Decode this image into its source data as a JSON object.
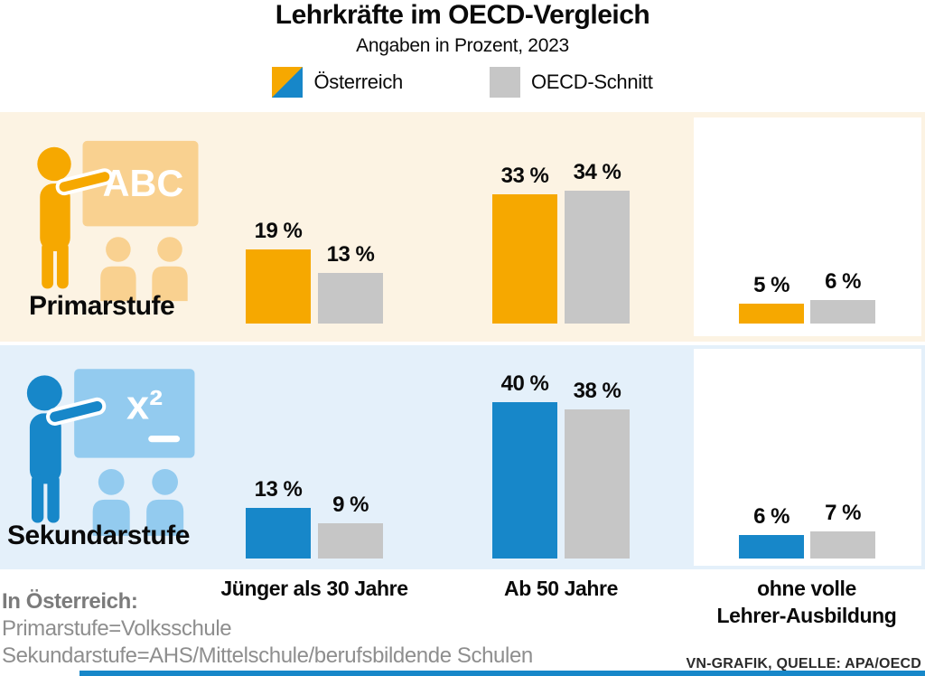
{
  "header": {
    "title": "Lehrkräfte im OECD-Vergleich",
    "subtitle": "Angaben in Prozent, 2023",
    "legend": [
      {
        "label": "Österreich",
        "swatch": "split-orange-blue"
      },
      {
        "label": "OECD-Schnitt",
        "swatch": "gray"
      }
    ]
  },
  "chart_data": {
    "type": "bar",
    "title": "Lehrkräfte im OECD-Vergleich",
    "subtitle": "Angaben in Prozent, 2023",
    "unit": "percent",
    "value_suffix": " %",
    "legend": [
      "Österreich",
      "OECD-Schnitt"
    ],
    "categories": [
      "Jünger als 30 Jahre",
      "Ab 50 Jahre",
      "ohne volle\nLehrer-Ausbildung"
    ],
    "rows": [
      {
        "label": "Primarstufe",
        "icon": "teacher-blackboard-abc",
        "icon_board_text": "ABC",
        "series": [
          {
            "name": "Österreich",
            "values": [
              19,
              33,
              5
            ]
          },
          {
            "name": "OECD-Schnitt",
            "values": [
              13,
              34,
              6
            ]
          }
        ]
      },
      {
        "label": "Sekundarstufe",
        "icon": "teacher-blackboard-x2",
        "icon_board_text": "x²",
        "series": [
          {
            "name": "Österreich",
            "values": [
              13,
              40,
              6
            ]
          },
          {
            "name": "OECD-Schnitt",
            "values": [
              9,
              38,
              7
            ]
          }
        ]
      }
    ]
  },
  "footnotes": {
    "heading": "In Österreich:",
    "lines": [
      "Primarstufe=Volksschule",
      "Sekundarstufe=AHS/Mittelschule/berufsbildende Schulen"
    ]
  },
  "source": "VN-GRAFIK, QUELLE: APA/OECD",
  "colors": {
    "austria_primary": "#F6A800",
    "austria_primary_light": "#F9D190",
    "primary_band_bg": "#FCF3E3",
    "austria_secondary": "#1787C9",
    "austria_secondary_light": "#93CBEF",
    "secondary_band_bg": "#E4F0FA",
    "oecd_gray": "#C6C6C6",
    "footnote_gray": "#8E8E8E",
    "footnote_heading_gray": "#7B7B7B",
    "source_text": "#2B2B2B",
    "bottom_bar": "#1787C9"
  }
}
